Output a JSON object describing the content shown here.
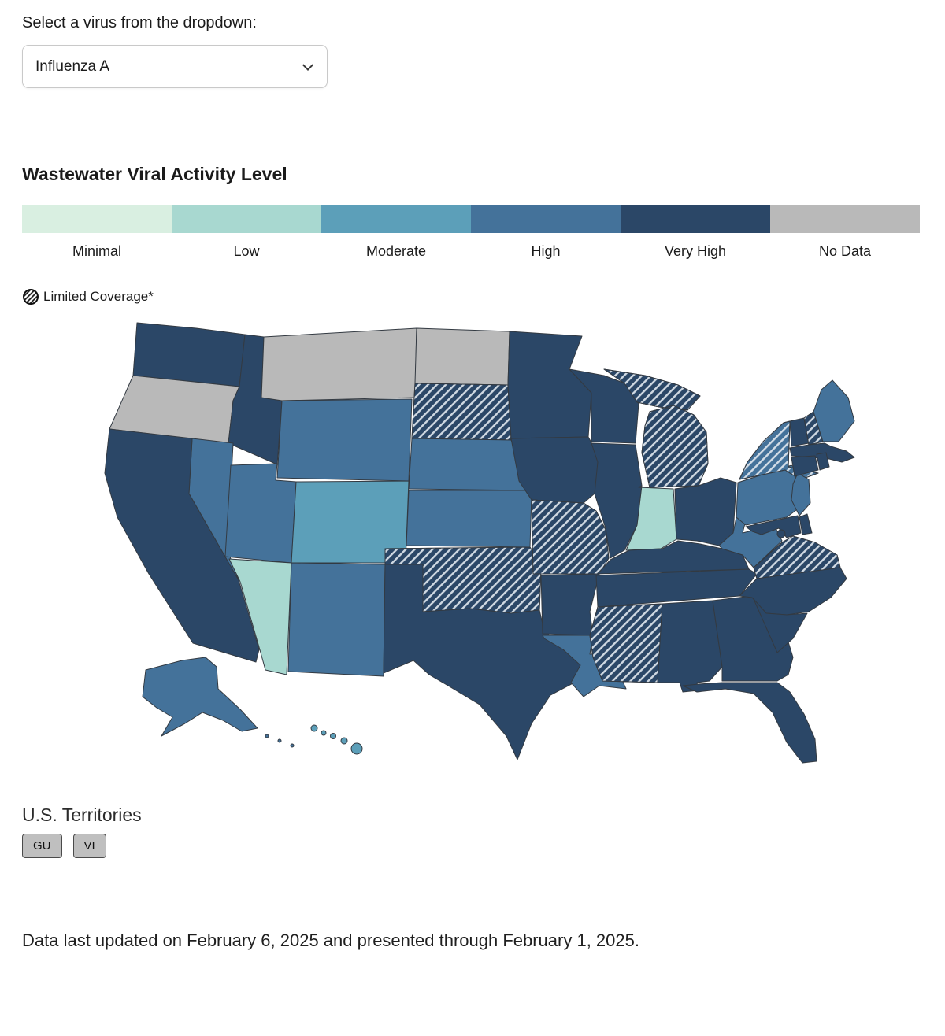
{
  "virus_selector": {
    "label": "Select a virus from the dropdown:",
    "selected": "Influenza A"
  },
  "heading": "Wastewater Viral Activity Level",
  "icons": {
    "dropdown": "chevron-down-icon",
    "limited_coverage": "hatched-circle-icon"
  },
  "legend": {
    "items": [
      {
        "level": "minimal",
        "label": "Minimal",
        "color": "#d9efe1"
      },
      {
        "level": "low",
        "label": "Low",
        "color": "#a8d8d0"
      },
      {
        "level": "moderate",
        "label": "Moderate",
        "color": "#5c9fb9"
      },
      {
        "level": "high",
        "label": "High",
        "color": "#44729a"
      },
      {
        "level": "very_high",
        "label": "Very High",
        "color": "#2b4767"
      },
      {
        "level": "no_data",
        "label": "No Data",
        "color": "#b9b9b9"
      }
    ],
    "limited_coverage_label": "Limited Coverage*"
  },
  "map": {
    "states": [
      {
        "id": "WA",
        "level": "very_high",
        "limited": false
      },
      {
        "id": "OR",
        "level": "no_data",
        "limited": false
      },
      {
        "id": "CA",
        "level": "very_high",
        "limited": false
      },
      {
        "id": "NV",
        "level": "high",
        "limited": false
      },
      {
        "id": "ID",
        "level": "very_high",
        "limited": false
      },
      {
        "id": "MT",
        "level": "no_data",
        "limited": false
      },
      {
        "id": "WY",
        "level": "high",
        "limited": false
      },
      {
        "id": "UT",
        "level": "high",
        "limited": false
      },
      {
        "id": "CO",
        "level": "moderate",
        "limited": false
      },
      {
        "id": "AZ",
        "level": "low",
        "limited": false
      },
      {
        "id": "NM",
        "level": "high",
        "limited": false
      },
      {
        "id": "ND",
        "level": "no_data",
        "limited": false
      },
      {
        "id": "SD",
        "level": "very_high",
        "limited": true
      },
      {
        "id": "NE",
        "level": "high",
        "limited": false
      },
      {
        "id": "KS",
        "level": "high",
        "limited": false
      },
      {
        "id": "OK",
        "level": "very_high",
        "limited": true
      },
      {
        "id": "TX",
        "level": "very_high",
        "limited": false
      },
      {
        "id": "MN",
        "level": "very_high",
        "limited": false
      },
      {
        "id": "IA",
        "level": "very_high",
        "limited": false
      },
      {
        "id": "MO",
        "level": "very_high",
        "limited": true
      },
      {
        "id": "AR",
        "level": "very_high",
        "limited": false
      },
      {
        "id": "LA",
        "level": "high",
        "limited": false
      },
      {
        "id": "WI",
        "level": "very_high",
        "limited": false
      },
      {
        "id": "IL",
        "level": "very_high",
        "limited": false
      },
      {
        "id": "MS",
        "level": "very_high",
        "limited": true
      },
      {
        "id": "MI",
        "level": "very_high",
        "limited": true
      },
      {
        "id": "IN",
        "level": "low",
        "limited": false
      },
      {
        "id": "OH",
        "level": "very_high",
        "limited": false
      },
      {
        "id": "KY",
        "level": "very_high",
        "limited": false
      },
      {
        "id": "TN",
        "level": "very_high",
        "limited": false
      },
      {
        "id": "AL",
        "level": "very_high",
        "limited": false
      },
      {
        "id": "GA",
        "level": "very_high",
        "limited": false
      },
      {
        "id": "FL",
        "level": "very_high",
        "limited": false
      },
      {
        "id": "WV",
        "level": "high",
        "limited": false
      },
      {
        "id": "VA",
        "level": "very_high",
        "limited": true
      },
      {
        "id": "NC",
        "level": "very_high",
        "limited": false
      },
      {
        "id": "SC",
        "level": "very_high",
        "limited": false
      },
      {
        "id": "PA",
        "level": "high",
        "limited": false
      },
      {
        "id": "NY",
        "level": "high",
        "limited": true
      },
      {
        "id": "NJ",
        "level": "high",
        "limited": false
      },
      {
        "id": "DE",
        "level": "very_high",
        "limited": false
      },
      {
        "id": "MD",
        "level": "very_high",
        "limited": false
      },
      {
        "id": "DC",
        "level": "very_high",
        "limited": false
      },
      {
        "id": "CT",
        "level": "very_high",
        "limited": false
      },
      {
        "id": "RI",
        "level": "very_high",
        "limited": false
      },
      {
        "id": "MA",
        "level": "very_high",
        "limited": false
      },
      {
        "id": "VT",
        "level": "very_high",
        "limited": false
      },
      {
        "id": "NH",
        "level": "very_high",
        "limited": true
      },
      {
        "id": "ME",
        "level": "high",
        "limited": false
      },
      {
        "id": "AK",
        "level": "high",
        "limited": false
      },
      {
        "id": "HI",
        "level": "moderate",
        "limited": false
      }
    ]
  },
  "territories": {
    "label": "U.S. Territories",
    "items": [
      {
        "code": "GU"
      },
      {
        "code": "VI"
      }
    ]
  },
  "footer": "Data last updated on February 6, 2025 and presented through February 1, 2025."
}
